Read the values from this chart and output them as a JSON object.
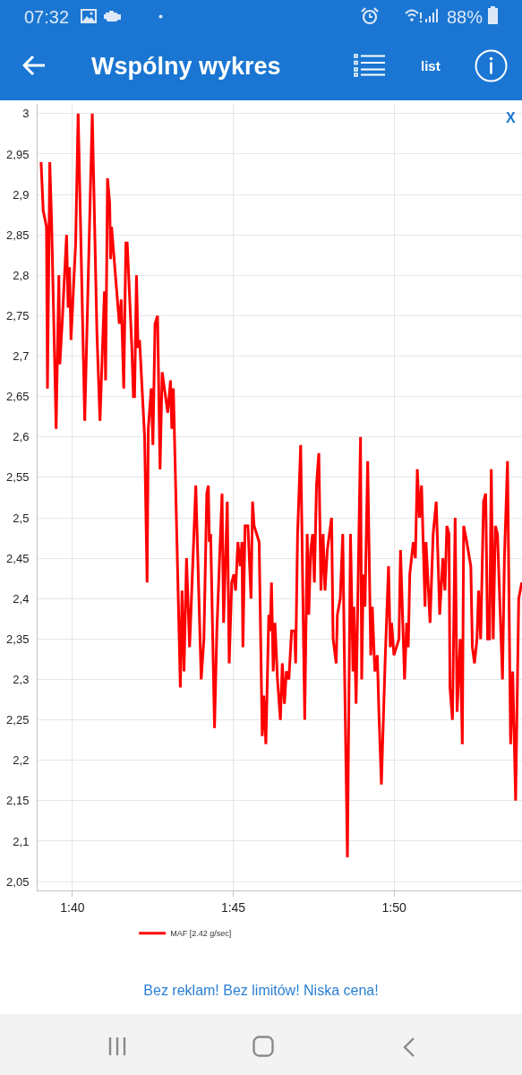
{
  "chart_data": {
    "type": "line",
    "title": "Wspólny wykres",
    "annotations": [
      "07:32",
      "88%",
      "list",
      "X",
      "Bez reklam! Bez limitów! Niska cena!"
    ],
    "x": [
      1.6505,
      1.6516,
      1.6533,
      1.6538,
      1.655,
      1.6559,
      1.6583,
      1.6597,
      1.6602,
      1.6614,
      1.6637,
      1.6645,
      1.6652,
      1.666,
      1.6684,
      1.6697,
      1.6731,
      1.677,
      1.6794,
      1.681,
      1.6833,
      1.6839,
      1.6849,
      1.686,
      1.6865,
      1.687,
      1.691,
      1.692,
      1.6933,
      1.6944,
      1.6951,
      1.6975,
      1.6983,
      1.6989,
      1.6999,
      1.7007,
      1.7015,
      1.7041,
      1.7054,
      1.706,
      1.7075,
      1.7084,
      1.7095,
      1.7108,
      1.7121,
      1.7132,
      1.7161,
      1.7175,
      1.7182,
      1.719,
      1.7226,
      1.7235,
      1.7245,
      1.7258,
      1.7274,
      1.7306,
      1.7334,
      1.7348,
      1.7363,
      1.7371,
      1.7376,
      1.7383,
      1.7403,
      1.7415,
      1.7442,
      1.745,
      1.7469,
      1.7479,
      1.7492,
      1.7503,
      1.7512,
      1.7524,
      1.7536,
      1.7545,
      1.755,
      1.7561,
      1.7576,
      1.7592,
      1.76,
      1.7608,
      1.7634,
      1.765,
      1.7658,
      1.7669,
      1.7684,
      1.7691,
      1.7698,
      1.7707,
      1.7716,
      1.7729,
      1.7744,
      1.7754,
      1.7765,
      1.7775,
      1.7788,
      1.7802,
      1.7818,
      1.7823,
      1.7833,
      1.7849,
      1.787,
      1.7883,
      1.7891,
      1.7901,
      1.7911,
      1.792,
      1.7931,
      1.7943,
      1.7954,
      1.7965,
      1.7975,
      1.7987,
      1.8009,
      1.8017,
      1.8033,
      1.8039,
      1.8054,
      1.8067,
      1.8077,
      1.8091,
      1.8107,
      1.812,
      1.8125,
      1.8136,
      1.8159,
      1.8165,
      1.8173,
      1.8182,
      1.8196,
      1.8212,
      1.822,
      1.8233,
      1.8246,
      1.8254,
      1.8267,
      1.8286,
      1.8304,
      1.8313,
      1.832,
      1.8332,
      1.8358,
      1.8366,
      1.8387,
      1.8398,
      1.8406,
      1.8414,
      1.8432,
      1.8443,
      1.8453,
      1.8464,
      1.8475,
      1.8493,
      1.8498,
      1.8519,
      1.8535,
      1.8551,
      1.8569,
      1.8585,
      1.8596,
      1.8606,
      1.8617,
      1.8622,
      1.8635,
      1.8649,
      1.8659,
      1.8675,
      1.8686,
      1.8693,
      1.8709,
      1.873,
      1.8738,
      1.8749,
      1.8762,
      1.877,
      1.8781,
      1.8796,
      1.8807,
      1.8817,
      1.8827,
      1.8836,
      1.8846,
      1.8857,
      1.8868,
      1.8894,
      1.8904,
      1.892,
      1.8936,
      1.8947,
      1.8962,
      1.8978,
      1.8994
    ],
    "series": [
      {
        "name": "MAF [2.42 g/sec]",
        "color": "#ff0000",
        "values": [
          2.94,
          2.88,
          2.86,
          2.66,
          2.94,
          2.87,
          2.61,
          2.8,
          2.69,
          2.74,
          2.85,
          2.76,
          2.81,
          2.72,
          2.84,
          3.0,
          2.62,
          3.0,
          2.73,
          2.62,
          2.78,
          2.67,
          2.92,
          2.89,
          2.82,
          2.86,
          2.74,
          2.77,
          2.66,
          2.84,
          2.84,
          2.71,
          2.65,
          2.65,
          2.8,
          2.71,
          2.72,
          2.6,
          2.42,
          2.61,
          2.66,
          2.59,
          2.74,
          2.75,
          2.56,
          2.68,
          2.63,
          2.67,
          2.61,
          2.66,
          2.29,
          2.41,
          2.31,
          2.45,
          2.34,
          2.54,
          2.3,
          2.35,
          2.53,
          2.54,
          2.47,
          2.48,
          2.24,
          2.36,
          2.53,
          2.37,
          2.52,
          2.32,
          2.42,
          2.43,
          2.41,
          2.47,
          2.44,
          2.47,
          2.34,
          2.49,
          2.49,
          2.4,
          2.52,
          2.49,
          2.47,
          2.23,
          2.28,
          2.22,
          2.38,
          2.36,
          2.42,
          2.31,
          2.37,
          2.3,
          2.25,
          2.32,
          2.27,
          2.31,
          2.3,
          2.36,
          2.36,
          2.32,
          2.48,
          2.59,
          2.25,
          2.48,
          2.38,
          2.46,
          2.48,
          2.42,
          2.54,
          2.58,
          2.41,
          2.48,
          2.41,
          2.46,
          2.5,
          2.35,
          2.32,
          2.38,
          2.4,
          2.48,
          2.3,
          2.08,
          2.48,
          2.31,
          2.39,
          2.27,
          2.6,
          2.3,
          2.43,
          2.39,
          2.57,
          2.33,
          2.39,
          2.31,
          2.33,
          2.26,
          2.17,
          2.32,
          2.44,
          2.34,
          2.37,
          2.33,
          2.35,
          2.46,
          2.3,
          2.37,
          2.34,
          2.43,
          2.47,
          2.45,
          2.56,
          2.5,
          2.54,
          2.39,
          2.47,
          2.37,
          2.48,
          2.52,
          2.38,
          2.45,
          2.41,
          2.49,
          2.48,
          2.29,
          2.25,
          2.5,
          2.26,
          2.35,
          2.22,
          2.49,
          2.47,
          2.44,
          2.34,
          2.32,
          2.35,
          2.41,
          2.35,
          2.52,
          2.53,
          2.35,
          2.35,
          2.56,
          2.35,
          2.49,
          2.48,
          2.3,
          2.45,
          2.57,
          2.22,
          2.31,
          2.15,
          2.4,
          2.42
        ]
      }
    ],
    "xlim": [
      1.6487,
      1.8995
    ],
    "xticks": [
      {
        "value": 1.6667,
        "label": "1:40"
      },
      {
        "value": 1.75,
        "label": "1:45"
      },
      {
        "value": 1.8333,
        "label": "1:50"
      }
    ],
    "ylim": [
      2.039,
      3.012
    ],
    "yticks": [
      3,
      {
        "value": 2.95,
        "label": "2,95"
      },
      {
        "value": 2.9,
        "label": "2,9"
      },
      {
        "value": 2.85,
        "label": "2,85"
      },
      {
        "value": 2.8,
        "label": "2,8"
      },
      {
        "value": 2.75,
        "label": "2,75"
      },
      {
        "value": 2.7,
        "label": "2,7"
      },
      {
        "value": 2.65,
        "label": "2,65"
      },
      {
        "value": 2.6,
        "label": "2,6"
      },
      {
        "value": 2.55,
        "label": "2,55"
      },
      {
        "value": 2.5,
        "label": "2,5"
      },
      {
        "value": 2.45,
        "label": "2,45"
      },
      {
        "value": 2.4,
        "label": "2,4"
      },
      {
        "value": 2.35,
        "label": "2,35"
      },
      {
        "value": 2.3,
        "label": "2,3"
      },
      {
        "value": 2.25,
        "label": "2,25"
      },
      {
        "value": 2.2,
        "label": "2,2"
      },
      {
        "value": 2.15,
        "label": "2,15"
      },
      {
        "value": 2.1,
        "label": "2,1"
      },
      {
        "value": 2.05,
        "label": "2,05"
      }
    ],
    "grid": true,
    "legend": "bottom",
    "line_style": "solid"
  }
}
